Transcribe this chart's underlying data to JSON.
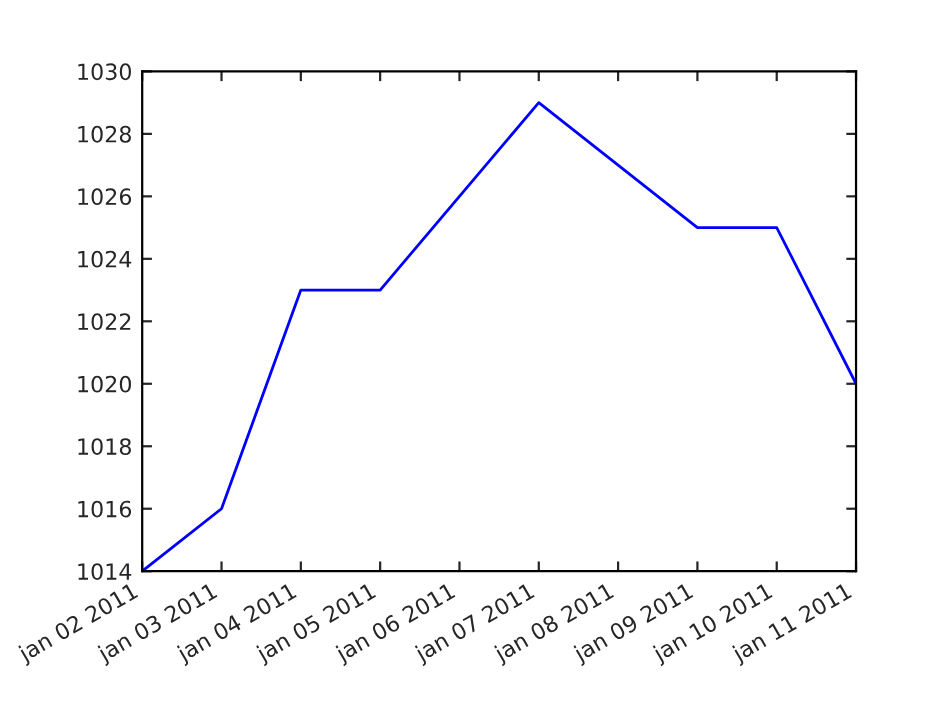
{
  "chart_data": {
    "type": "line",
    "x": [
      "2011-01-02",
      "2011-01-03",
      "2011-01-04",
      "2011-01-05",
      "2011-01-07",
      "2011-01-09",
      "2011-01-10",
      "2011-01-11"
    ],
    "series": [
      {
        "color": "#0000ff",
        "values": [
          1014,
          1016,
          1023,
          1023,
          1029,
          1025,
          1025,
          1020
        ]
      }
    ],
    "xlim": [
      "2011-01-02",
      "2011-01-11"
    ],
    "xticks": [
      {
        "value": "2011-01-02",
        "label": "jan 02 2011"
      },
      {
        "value": "2011-01-03",
        "label": "jan 03 2011"
      },
      {
        "value": "2011-01-04",
        "label": "jan 04 2011"
      },
      {
        "value": "2011-01-05",
        "label": "jan 05 2011"
      },
      {
        "value": "2011-01-06",
        "label": "jan 06 2011"
      },
      {
        "value": "2011-01-07",
        "label": "jan 07 2011"
      },
      {
        "value": "2011-01-08",
        "label": "jan 08 2011"
      },
      {
        "value": "2011-01-09",
        "label": "jan 09 2011"
      },
      {
        "value": "2011-01-10",
        "label": "jan 10 2011"
      },
      {
        "value": "2011-01-11",
        "label": "jan 11 2011"
      }
    ],
    "ylim": [
      1014,
      1030
    ],
    "yticks": [
      1014,
      1016,
      1018,
      1020,
      1022,
      1024,
      1026,
      1028,
      1030
    ],
    "grid": false,
    "marker": "none",
    "line_style": "solid"
  }
}
